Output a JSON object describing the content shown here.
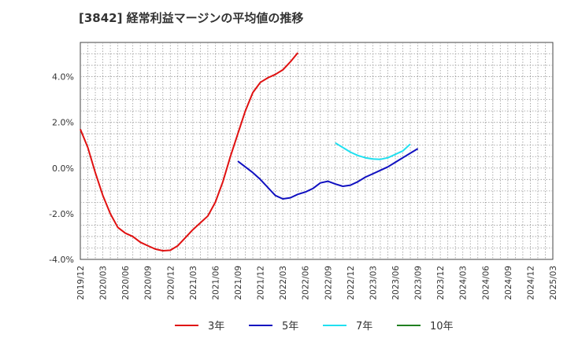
{
  "chart_data": {
    "type": "line",
    "title": "[3842]  経常利益マージンの平均値の推移",
    "xlabel": "",
    "ylabel": "",
    "ylim": [
      -4.0,
      5.5
    ],
    "y_ticks": [
      -4.0,
      -2.0,
      0.0,
      2.0,
      4.0
    ],
    "y_tick_labels": [
      "-4.0%",
      "-2.0%",
      "0.0%",
      "2.0%",
      "4.0%"
    ],
    "x_tick_labels": [
      "2019/12",
      "2020/03",
      "2020/06",
      "2020/09",
      "2020/12",
      "2021/03",
      "2021/06",
      "2021/09",
      "2021/12",
      "2022/03",
      "2022/06",
      "2022/09",
      "2022/12",
      "2023/03",
      "2023/06",
      "2023/09",
      "2023/12",
      "2024/03",
      "2024/06",
      "2024/09",
      "2024/12",
      "2025/03"
    ],
    "grid": true,
    "legend_position": "bottom",
    "series": [
      {
        "name": "3年",
        "color": "#e01010",
        "values": [
          1.7,
          0.9,
          -0.2,
          -1.2,
          -2.0,
          -2.6,
          -2.85,
          -3.0,
          -3.25,
          -3.4,
          -3.55,
          -3.62,
          -3.6,
          -3.4,
          -3.05,
          -2.7,
          -2.4,
          -2.1,
          -1.5,
          -0.6,
          0.5,
          1.5,
          2.5,
          3.3,
          3.75,
          3.95,
          4.1,
          4.3,
          4.65,
          5.05
        ]
      },
      {
        "name": "5年",
        "color": "#1010c0",
        "values": [
          null,
          null,
          null,
          null,
          null,
          null,
          null,
          null,
          null,
          null,
          null,
          null,
          null,
          null,
          null,
          null,
          null,
          null,
          null,
          null,
          null,
          0.3,
          0.05,
          -0.2,
          -0.5,
          -0.85,
          -1.2,
          -1.35,
          -1.3,
          -1.15,
          -1.05,
          -0.9,
          -0.65,
          -0.58,
          -0.7,
          -0.8,
          -0.75,
          -0.6,
          -0.4,
          -0.25,
          -0.1,
          0.05,
          0.25,
          0.45,
          0.65,
          0.85
        ]
      },
      {
        "name": "7年",
        "color": "#20e0f0",
        "values": [
          null,
          null,
          null,
          null,
          null,
          null,
          null,
          null,
          null,
          null,
          null,
          null,
          null,
          null,
          null,
          null,
          null,
          null,
          null,
          null,
          null,
          null,
          null,
          null,
          null,
          null,
          null,
          null,
          null,
          null,
          null,
          null,
          null,
          null,
          1.1,
          0.9,
          0.7,
          0.55,
          0.45,
          0.4,
          0.38,
          0.45,
          0.6,
          0.75,
          1.05
        ]
      },
      {
        "name": "10年",
        "color": "#208020",
        "values": []
      }
    ]
  }
}
